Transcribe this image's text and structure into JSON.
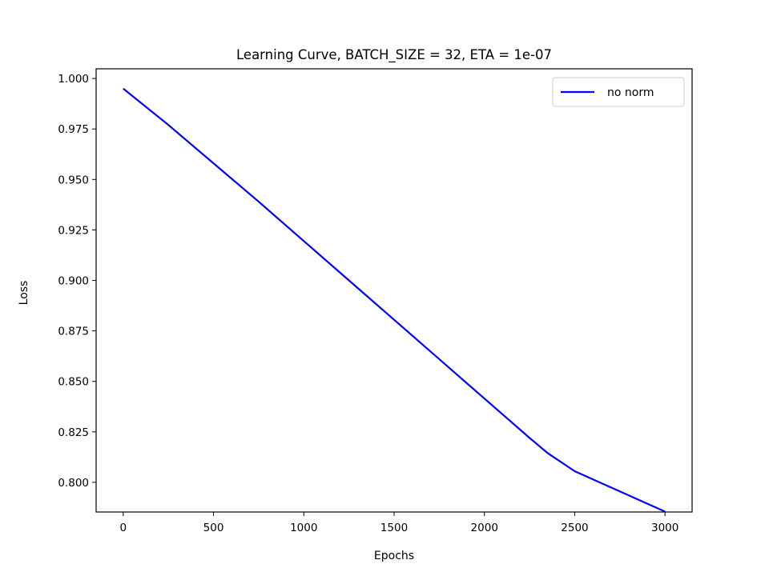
{
  "chart_data": {
    "type": "line",
    "title": "Learning Curve, BATCH_SIZE = 32, ETA = 1e-07",
    "xlabel": "Epochs",
    "ylabel": "Loss",
    "xlim": [
      -150,
      3150
    ],
    "ylim": [
      0.7853,
      1.0048
    ],
    "x_ticks": [
      0,
      500,
      1000,
      1500,
      2000,
      2500,
      3000
    ],
    "x_tick_labels": [
      "0",
      "500",
      "1000",
      "1500",
      "2000",
      "2500",
      "3000"
    ],
    "y_ticks": [
      0.8,
      0.825,
      0.85,
      0.875,
      0.9,
      0.925,
      0.95,
      0.975,
      1.0
    ],
    "y_tick_labels": [
      "0.800",
      "0.825",
      "0.850",
      "0.875",
      "0.900",
      "0.925",
      "0.950",
      "0.975",
      "1.000"
    ],
    "grid": false,
    "legend_position": "top-right",
    "series": [
      {
        "name": "no norm",
        "color": "#0000ff",
        "x": [
          0,
          250,
          500,
          750,
          1000,
          1250,
          1500,
          1750,
          2000,
          2250,
          2350,
          2500,
          2750,
          3000
        ],
        "y": [
          0.995,
          0.977,
          0.958,
          0.939,
          0.9195,
          0.9,
          0.8805,
          0.861,
          0.8415,
          0.822,
          0.8145,
          0.8055,
          0.7955,
          0.7855
        ]
      }
    ]
  }
}
